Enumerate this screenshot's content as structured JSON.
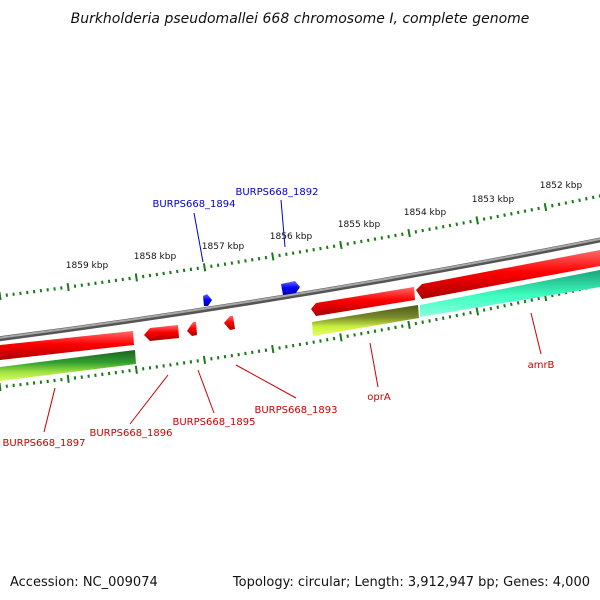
{
  "title": "Burkholderia pseudomallei 668 chromosome I, complete genome",
  "footer": {
    "accession": "Accession: NC_009074",
    "summary": "Topology: circular; Length: 3,912,947 bp; Genes: 4,000"
  },
  "colors": {
    "backbone": "#808080",
    "tick": "#1a7a1a",
    "forward_gene": "#ff0000",
    "reverse_gene": "#0000ff",
    "forward_label": "#cc0000",
    "reverse_label": "#0000cc"
  },
  "scale_ticks": [
    {
      "label": "1852 kbp"
    },
    {
      "label": "1853 kbp"
    },
    {
      "label": "1854 kbp"
    },
    {
      "label": "1855 kbp"
    },
    {
      "label": "1856 kbp"
    },
    {
      "label": "1857 kbp"
    },
    {
      "label": "1858 kbp"
    },
    {
      "label": "1859 kbp"
    }
  ],
  "gene_labels": [
    {
      "name": "BURPS668_1892",
      "strand": "reverse"
    },
    {
      "name": "BURPS668_1894",
      "strand": "reverse"
    },
    {
      "name": "amrB",
      "strand": "forward"
    },
    {
      "name": "oprA",
      "strand": "forward"
    },
    {
      "name": "BURPS668_1893",
      "strand": "forward"
    },
    {
      "name": "BURPS668_1895",
      "strand": "forward"
    },
    {
      "name": "BURPS668_1896",
      "strand": "forward"
    },
    {
      "name": "BURPS668_1897",
      "strand": "forward"
    }
  ]
}
